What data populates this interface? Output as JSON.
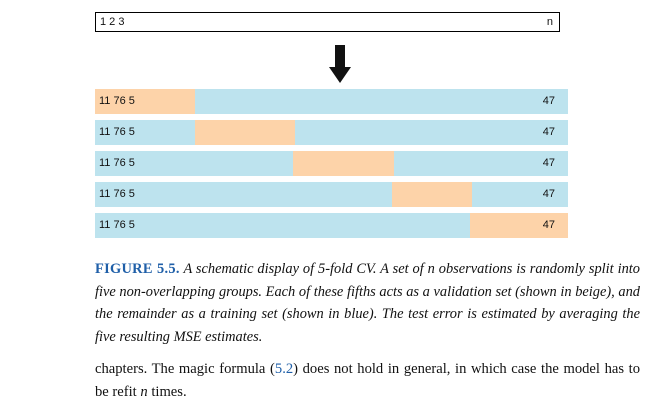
{
  "figure": {
    "top_bar": {
      "left_label": "1 2 3",
      "right_label": "n"
    },
    "rows": [
      {
        "left_label": "11 76 5",
        "right_label": "47",
        "validation_fold": 1
      },
      {
        "left_label": "11 76 5",
        "right_label": "47",
        "validation_fold": 2
      },
      {
        "left_label": "11 76 5",
        "right_label": "47",
        "validation_fold": 3
      },
      {
        "left_label": "11 76 5",
        "right_label": "47",
        "validation_fold": 4
      },
      {
        "left_label": "11 76 5",
        "right_label": "47",
        "validation_fold": 5
      }
    ],
    "colors": {
      "training": "#bde3ee",
      "validation": "#fdd3a9",
      "caption_label": "#1f5fa8"
    }
  },
  "caption": {
    "label": "FIGURE 5.5.",
    "text_1": "A schematic display of 5-fold CV. A set of",
    "math_n": "n",
    "text_2": "observations is randomly split into five non-overlapping groups. Each of these fifths acts as a validation set (shown in beige), and the remainder as a training set (shown in blue). The test error is estimated by averaging the five resulting MSE estimates."
  },
  "body": {
    "text_1": "chapters. The magic formula (",
    "ref": "5.2",
    "text_2": ") does not hold in general, in which case the model has to be refit",
    "math_n": "n",
    "text_3": "times."
  }
}
